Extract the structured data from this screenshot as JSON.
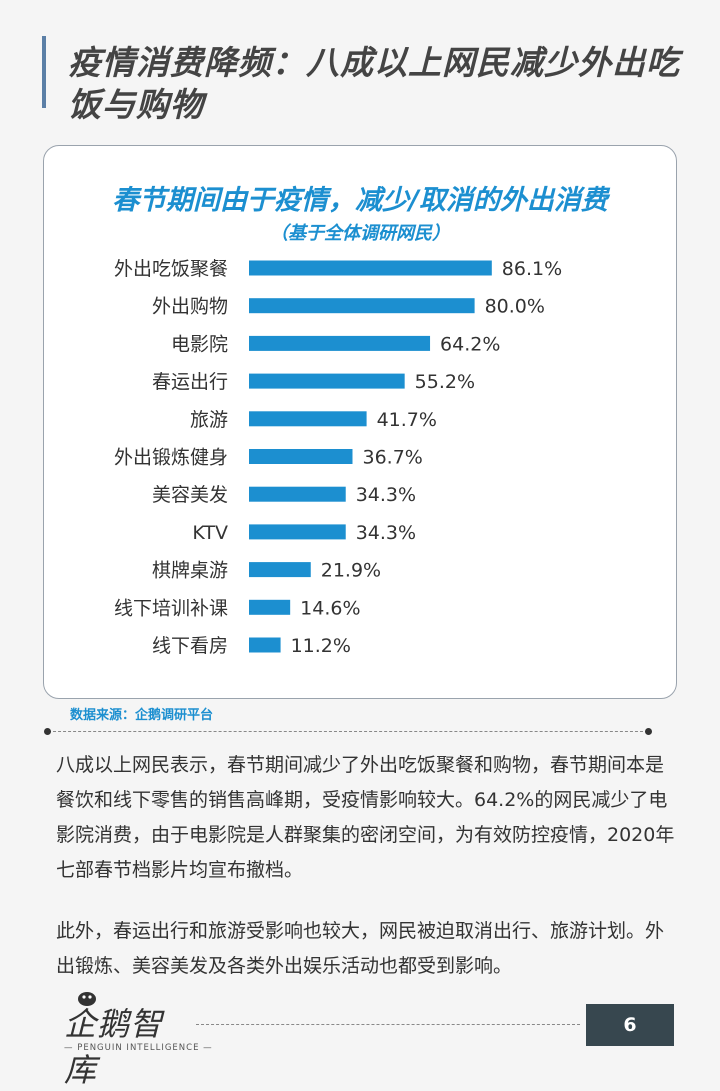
{
  "page": {
    "title": "疫情消费降频：八成以上网民减少外出吃饭与购物",
    "source": "数据来源：企鹅调研平台",
    "paragraph1": "八成以上网民表示，春节期间减少了外出吃饭聚餐和购物，春节期间本是餐饮和线下零售的销售高峰期，受疫情影响较大。64.2%的网民减少了电影院消费，由于电影院是人群聚集的密闭空间，为有效防控疫情，2020年七部春节档影片均宣布撤档。",
    "paragraph2": "此外，春运出行和旅游受影响也较大，网民被迫取消出行、旅游计划。外出锻炼、美容美发及各类外出娱乐活动也都受到影响。",
    "page_number": "6",
    "logo_text": "企鹅智库",
    "logo_sub": "— PENGUIN INTELLIGENCE —",
    "accent_color": "#1c8fd0",
    "bar_color": "#1c8fd0"
  },
  "chart_data": {
    "type": "bar",
    "orientation": "horizontal",
    "title": "春节期间由于疫情，减少/取消的外出消费",
    "subtitle": "（基于全体调研网民）",
    "categories": [
      "外出吃饭聚餐",
      "外出购物",
      "电影院",
      "春运出行",
      "旅游",
      "外出锻炼健身",
      "美容美发",
      "KTV",
      "棋牌桌游",
      "线下培训补课",
      "线下看房"
    ],
    "values": [
      86.1,
      80.0,
      64.2,
      55.2,
      41.7,
      36.7,
      34.3,
      34.3,
      21.9,
      14.6,
      11.2
    ],
    "value_labels": [
      "86.1%",
      "80.0%",
      "64.2%",
      "55.2%",
      "41.7%",
      "36.7%",
      "34.3%",
      "34.3%",
      "21.9%",
      "14.6%",
      "11.2%"
    ],
    "unit": "%",
    "xlim": [
      0,
      100
    ],
    "grid": false,
    "legend": "none"
  }
}
